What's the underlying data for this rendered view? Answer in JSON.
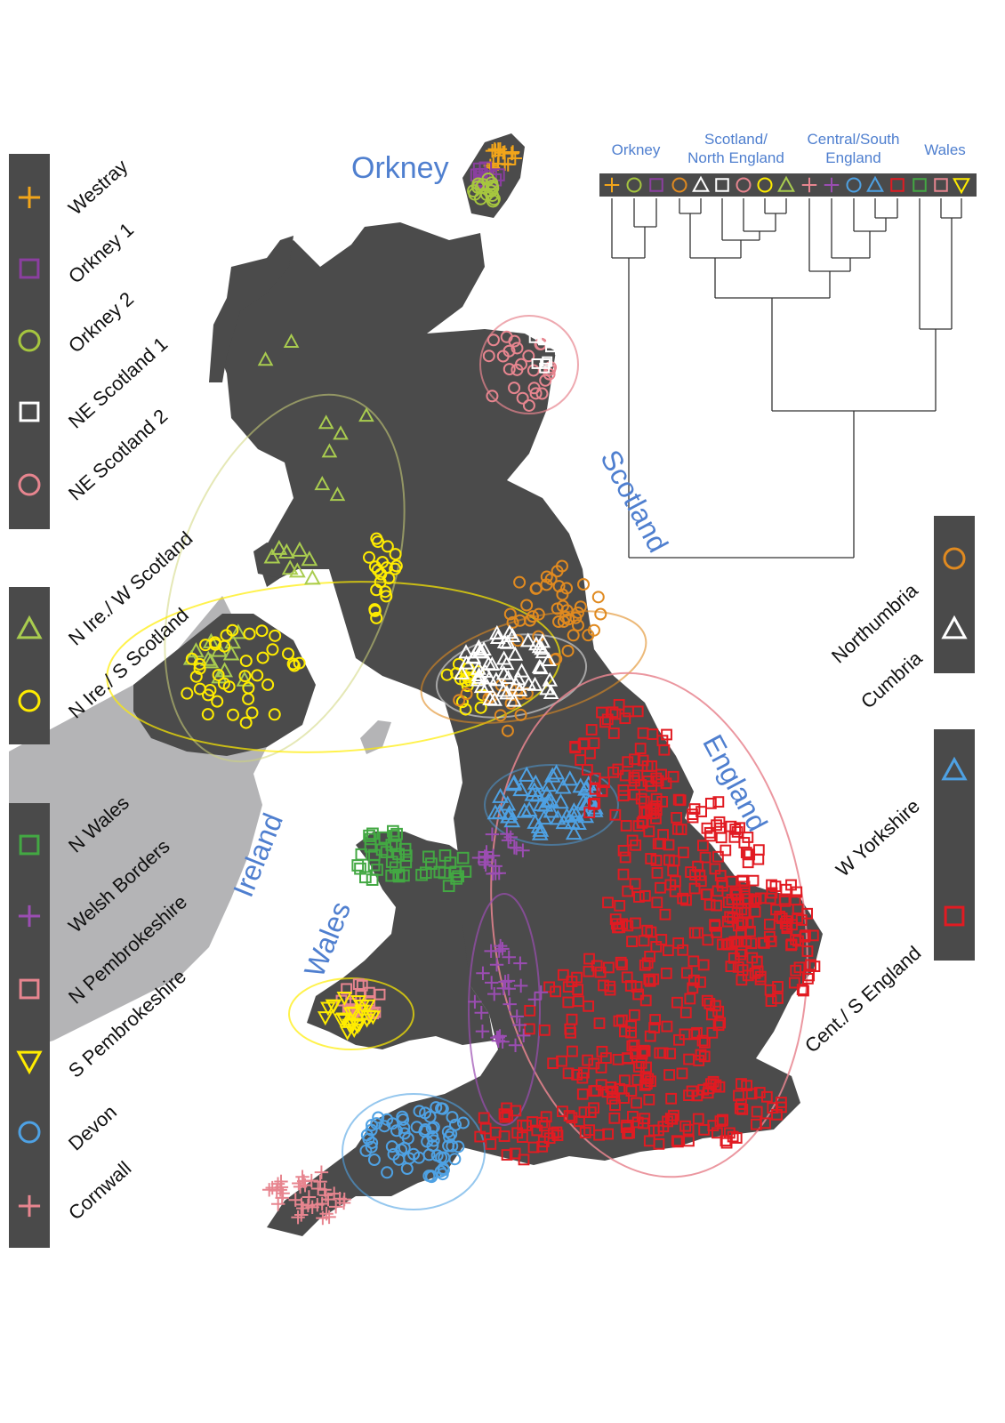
{
  "colors": {
    "land": "#4b4b4b",
    "ireland": "#b4b4b6",
    "northern_ireland": "#4b4b4b",
    "panel": "#4a4a4a",
    "label_blue": "#4f7fcf",
    "westray": "#f2a51a",
    "orkney1": "#8b3fa0",
    "orkney2": "#a6c63f",
    "ne_scotland2": "#ffffff",
    "ne_scotland1": "#e7858f",
    "n_ire_w_scotland": "#a9cc4f",
    "n_ire_s_scotland": "#ffec00",
    "n_wales": "#43a843",
    "welsh_borders": "#9b4db2",
    "n_pembrokeshire": "#e7858f",
    "s_pembrokeshire": "#ffec00",
    "devon": "#4ea1e3",
    "cornwall": "#e7858f",
    "northumbria": "#e08a20",
    "cumbria": "#ffffff",
    "w_yorkshire": "#4ea1e3",
    "cent_s_england": "#e11b22"
  },
  "map_labels": {
    "orkney": "Orkney",
    "scotland": "Scotland",
    "england": "England",
    "ireland": "Ireland",
    "wales": "Wales"
  },
  "legend_left": [
    {
      "label": "Westray",
      "icon": "plus-icon",
      "color_key": "westray"
    },
    {
      "label": "Orkney 1",
      "icon": "square-icon",
      "color_key": "orkney1"
    },
    {
      "label": "Orkney 2",
      "icon": "circle-icon",
      "color_key": "orkney2"
    },
    {
      "label": "NE Scotland 1",
      "icon": "square-icon",
      "color_key": "ne_scotland2"
    },
    {
      "label": "NE Scotland 2",
      "icon": "circle-icon",
      "color_key": "ne_scotland1"
    },
    {
      "label": "N Ire./ W Scotland",
      "icon": "triangle-icon",
      "color_key": "n_ire_w_scotland"
    },
    {
      "label": "N Ire./ S Scotland",
      "icon": "circle-icon",
      "color_key": "n_ire_s_scotland"
    },
    {
      "label": "N Wales",
      "icon": "square-icon",
      "color_key": "n_wales"
    },
    {
      "label": "Welsh Borders",
      "icon": "plus-icon",
      "color_key": "welsh_borders"
    },
    {
      "label": "N Pembrokeshire",
      "icon": "square-icon",
      "color_key": "n_pembrokeshire"
    },
    {
      "label": "S Pembrokeshire",
      "icon": "triangle-down-icon",
      "color_key": "s_pembrokeshire"
    },
    {
      "label": "Devon",
      "icon": "circle-icon",
      "color_key": "devon"
    },
    {
      "label": "Cornwall",
      "icon": "plus-icon",
      "color_key": "cornwall"
    }
  ],
  "legend_right": [
    {
      "label": "Northumbria",
      "icon": "circle-icon",
      "color_key": "northumbria"
    },
    {
      "label": "Cumbria",
      "icon": "triangle-icon",
      "color_key": "cumbria"
    },
    {
      "label": "W Yorkshire",
      "icon": "triangle-icon",
      "color_key": "w_yorkshire"
    },
    {
      "label": "Cent./ S England",
      "icon": "square-icon",
      "color_key": "cent_s_england"
    }
  ],
  "dendrogram": {
    "groups": [
      "Orkney",
      "Scotland/\nNorth England",
      "Central/South\nEngland",
      "Wales"
    ],
    "leaves": [
      {
        "icon": "plus-icon",
        "color_key": "westray"
      },
      {
        "icon": "circle-icon",
        "color_key": "orkney2"
      },
      {
        "icon": "square-icon",
        "color_key": "orkney1"
      },
      {
        "icon": "circle-icon",
        "color_key": "northumbria"
      },
      {
        "icon": "triangle-icon",
        "color_key": "cumbria"
      },
      {
        "icon": "square-icon",
        "color_key": "ne_scotland2"
      },
      {
        "icon": "circle-icon",
        "color_key": "ne_scotland1"
      },
      {
        "icon": "circle-icon",
        "color_key": "n_ire_s_scotland"
      },
      {
        "icon": "triangle-icon",
        "color_key": "n_ire_w_scotland"
      },
      {
        "icon": "plus-icon",
        "color_key": "cornwall"
      },
      {
        "icon": "plus-icon",
        "color_key": "welsh_borders"
      },
      {
        "icon": "circle-icon",
        "color_key": "devon"
      },
      {
        "icon": "triangle-icon",
        "color_key": "w_yorkshire"
      },
      {
        "icon": "square-icon",
        "color_key": "cent_s_england"
      },
      {
        "icon": "square-icon",
        "color_key": "n_wales"
      },
      {
        "icon": "square-icon",
        "color_key": "n_pembrokeshire"
      },
      {
        "icon": "triangle-down-icon",
        "color_key": "s_pembrokeshire"
      }
    ]
  }
}
